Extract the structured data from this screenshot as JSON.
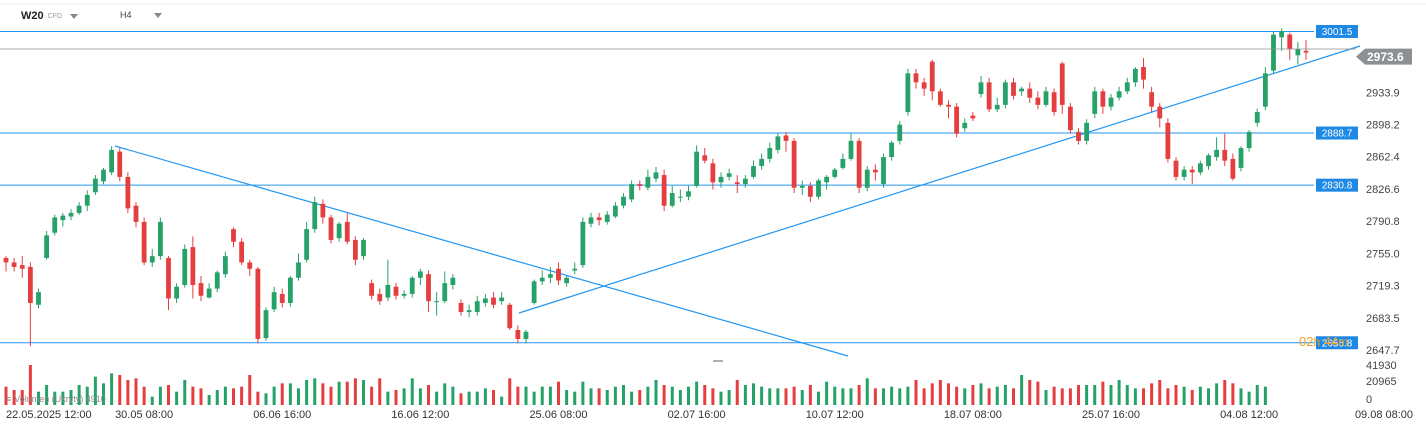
{
  "header": {
    "symbol": "W20",
    "instrument_type": "CFD",
    "timeframe": "H4"
  },
  "timer": {
    "hours": "02",
    "h_unit": "h",
    "minutes": "44",
    "m_unit": "m"
  },
  "volume_label": "Volumen (Ukryty) 4910",
  "colors": {
    "up": "#26a268",
    "down": "#e53e3e",
    "line": "#2196f3",
    "price_tag": "#1e88e5",
    "current_tag": "#8c8f94"
  },
  "chart_data": {
    "type": "candlestick",
    "timeframe": "H4",
    "ylim": [
      2640,
      3012
    ],
    "y_ticks": [
      "2647.7",
      "2683.5",
      "2719.3",
      "2755.0",
      "2790.8",
      "2826.6",
      "2862.4",
      "2898.2",
      "2933.9"
    ],
    "x_ticks": [
      "22.05.2025  12:00",
      "30.05  08:00",
      "06.06  16:00",
      "16.06  12:00",
      "25.06  08:00",
      "02.07  16:00",
      "10.07  12:00",
      "18.07  08:00",
      "25.07  16:00",
      "04.08  12:00",
      "09.08  08:00"
    ],
    "horizontal_levels": [
      {
        "value": 3001.5,
        "label": "3001.5"
      },
      {
        "value": 2888.7,
        "label": "2888.7"
      },
      {
        "value": 2830.8,
        "label": "2830.8"
      },
      {
        "value": 2655.8,
        "label": "2655.8"
      }
    ],
    "current_price": {
      "value": 2973.6,
      "label": "2973.6"
    },
    "volume_axis": {
      "max": 41930,
      "ticks": [
        "41930",
        "20965",
        "0"
      ]
    },
    "candles": [
      [
        2750,
        2745,
        2752,
        2735
      ],
      [
        2745,
        2740,
        2750,
        2735
      ],
      [
        2742,
        2738,
        2752,
        2728
      ],
      [
        2740,
        2700,
        2745,
        2652
      ],
      [
        2698,
        2712,
        2716,
        2694
      ],
      [
        2750,
        2775,
        2780,
        2748
      ],
      [
        2778,
        2795,
        2798,
        2775
      ],
      [
        2792,
        2797,
        2800,
        2785
      ],
      [
        2796,
        2800,
        2804,
        2792
      ],
      [
        2800,
        2808,
        2812,
        2798
      ],
      [
        2808,
        2820,
        2825,
        2802
      ],
      [
        2823,
        2838,
        2842,
        2820
      ],
      [
        2835,
        2848,
        2850,
        2832
      ],
      [
        2845,
        2870,
        2874,
        2842
      ],
      [
        2868,
        2840,
        2872,
        2835
      ],
      [
        2840,
        2805,
        2845,
        2800
      ],
      [
        2808,
        2790,
        2812,
        2784
      ],
      [
        2790,
        2745,
        2795,
        2742
      ],
      [
        2745,
        2752,
        2760,
        2740
      ],
      [
        2752,
        2790,
        2795,
        2748
      ],
      [
        2750,
        2705,
        2752,
        2692
      ],
      [
        2705,
        2718,
        2722,
        2700
      ],
      [
        2720,
        2760,
        2765,
        2717
      ],
      [
        2762,
        2720,
        2774,
        2705
      ],
      [
        2722,
        2708,
        2730,
        2702
      ],
      [
        2706,
        2716,
        2722,
        2705
      ],
      [
        2716,
        2734,
        2736,
        2712
      ],
      [
        2732,
        2752,
        2757,
        2728
      ],
      [
        2782,
        2768,
        2784,
        2762
      ],
      [
        2768,
        2745,
        2772,
        2742
      ],
      [
        2745,
        2738,
        2748,
        2730
      ],
      [
        2738,
        2660,
        2740,
        2655
      ],
      [
        2661,
        2692,
        2695,
        2658
      ],
      [
        2693,
        2712,
        2718,
        2690
      ],
      [
        2710,
        2700,
        2716,
        2695
      ],
      [
        2700,
        2728,
        2730,
        2696
      ],
      [
        2728,
        2745,
        2755,
        2725
      ],
      [
        2748,
        2782,
        2790,
        2745
      ],
      [
        2782,
        2812,
        2818,
        2778
      ],
      [
        2810,
        2795,
        2815,
        2788
      ],
      [
        2795,
        2770,
        2798,
        2766
      ],
      [
        2772,
        2788,
        2790,
        2768
      ],
      [
        2790,
        2768,
        2800,
        2765
      ],
      [
        2770,
        2748,
        2774,
        2742
      ],
      [
        2752,
        2770,
        2772,
        2748
      ],
      [
        2722,
        2708,
        2726,
        2704
      ],
      [
        2710,
        2702,
        2716,
        2698
      ],
      [
        2706,
        2720,
        2748,
        2702
      ],
      [
        2718,
        2708,
        2722,
        2704
      ],
      [
        2708,
        2710,
        2714,
        2705
      ],
      [
        2710,
        2728,
        2730,
        2706
      ],
      [
        2728,
        2735,
        2738,
        2720
      ],
      [
        2732,
        2702,
        2736,
        2690
      ],
      [
        2702,
        2702,
        2712,
        2686
      ],
      [
        2702,
        2722,
        2735,
        2700
      ],
      [
        2720,
        2728,
        2732,
        2715
      ],
      [
        2700,
        2690,
        2704,
        2686
      ],
      [
        2690,
        2692,
        2698,
        2684
      ],
      [
        2690,
        2702,
        2708,
        2686
      ],
      [
        2700,
        2705,
        2710,
        2696
      ],
      [
        2706,
        2698,
        2712,
        2694
      ],
      [
        2702,
        2706,
        2712,
        2698
      ],
      [
        2698,
        2672,
        2700,
        2670
      ],
      [
        2670,
        2660,
        2675,
        2655
      ],
      [
        2660,
        2668,
        2670,
        2655
      ],
      [
        2700,
        2724,
        2726,
        2698
      ],
      [
        2724,
        2728,
        2736,
        2720
      ],
      [
        2728,
        2732,
        2740,
        2722
      ],
      [
        2738,
        2725,
        2745,
        2720
      ],
      [
        2722,
        2728,
        2730,
        2718
      ],
      [
        2736,
        2738,
        2745,
        2732
      ],
      [
        2742,
        2790,
        2795,
        2739
      ],
      [
        2788,
        2795,
        2800,
        2784
      ],
      [
        2795,
        2792,
        2800,
        2786
      ],
      [
        2790,
        2798,
        2802,
        2787
      ],
      [
        2796,
        2808,
        2812,
        2794
      ],
      [
        2808,
        2818,
        2822,
        2805
      ],
      [
        2815,
        2832,
        2836,
        2812
      ],
      [
        2832,
        2830,
        2836,
        2825
      ],
      [
        2828,
        2840,
        2848,
        2825
      ],
      [
        2838,
        2845,
        2851,
        2834
      ],
      [
        2842,
        2808,
        2848,
        2802
      ],
      [
        2808,
        2822,
        2830,
        2806
      ],
      [
        2818,
        2818,
        2826,
        2812
      ],
      [
        2818,
        2824,
        2830,
        2814
      ],
      [
        2830,
        2868,
        2875,
        2828
      ],
      [
        2864,
        2858,
        2872,
        2855
      ],
      [
        2855,
        2834,
        2860,
        2826
      ],
      [
        2834,
        2840,
        2845,
        2828
      ],
      [
        2840,
        2844,
        2849,
        2836
      ],
      [
        2834,
        2832,
        2842,
        2822
      ],
      [
        2832,
        2838,
        2842,
        2828
      ],
      [
        2840,
        2852,
        2858,
        2838
      ],
      [
        2852,
        2860,
        2866,
        2848
      ],
      [
        2860,
        2872,
        2878,
        2856
      ],
      [
        2870,
        2885,
        2888,
        2866
      ],
      [
        2886,
        2880,
        2890,
        2868
      ],
      [
        2880,
        2828,
        2883,
        2822
      ],
      [
        2828,
        2830,
        2836,
        2820
      ],
      [
        2830,
        2818,
        2834,
        2812
      ],
      [
        2818,
        2836,
        2838,
        2815
      ],
      [
        2834,
        2840,
        2842,
        2826
      ],
      [
        2840,
        2848,
        2850,
        2838
      ],
      [
        2850,
        2860,
        2866,
        2848
      ],
      [
        2860,
        2880,
        2888,
        2858
      ],
      [
        2880,
        2828,
        2883,
        2822
      ],
      [
        2828,
        2848,
        2852,
        2824
      ],
      [
        2848,
        2845,
        2854,
        2836
      ],
      [
        2832,
        2862,
        2866,
        2828
      ],
      [
        2862,
        2878,
        2880,
        2858
      ],
      [
        2880,
        2898,
        2902,
        2876
      ],
      [
        2912,
        2955,
        2960,
        2908
      ],
      [
        2955,
        2945,
        2960,
        2938
      ],
      [
        2945,
        2938,
        2950,
        2930
      ],
      [
        2968,
        2935,
        2970,
        2925
      ],
      [
        2935,
        2920,
        2938,
        2918
      ],
      [
        2920,
        2918,
        2925,
        2905
      ],
      [
        2918,
        2888,
        2922,
        2884
      ],
      [
        2894,
        2900,
        2905,
        2890
      ],
      [
        2908,
        2905,
        2912,
        2902
      ],
      [
        2932,
        2945,
        2952,
        2928
      ],
      [
        2945,
        2915,
        2950,
        2912
      ],
      [
        2915,
        2920,
        2928,
        2912
      ],
      [
        2920,
        2945,
        2948,
        2916
      ],
      [
        2945,
        2930,
        2950,
        2926
      ],
      [
        2935,
        2938,
        2940,
        2930
      ],
      [
        2938,
        2928,
        2945,
        2922
      ],
      [
        2928,
        2920,
        2935,
        2915
      ],
      [
        2920,
        2935,
        2940,
        2918
      ],
      [
        2934,
        2912,
        2938,
        2908
      ],
      [
        2966,
        2920,
        2968,
        2910
      ],
      [
        2918,
        2892,
        2922,
        2888
      ],
      [
        2890,
        2880,
        2894,
        2876
      ],
      [
        2880,
        2900,
        2904,
        2876
      ],
      [
        2910,
        2935,
        2940,
        2905
      ],
      [
        2935,
        2918,
        2938,
        2910
      ],
      [
        2918,
        2928,
        2932,
        2914
      ],
      [
        2928,
        2935,
        2940,
        2925
      ],
      [
        2935,
        2945,
        2950,
        2932
      ],
      [
        2945,
        2960,
        2962,
        2940
      ],
      [
        2962,
        2948,
        2972,
        2938
      ],
      [
        2934,
        2918,
        2940,
        2912
      ],
      [
        2918,
        2905,
        2922,
        2895
      ],
      [
        2900,
        2860,
        2905,
        2856
      ],
      [
        2858,
        2840,
        2862,
        2836
      ],
      [
        2840,
        2848,
        2852,
        2836
      ],
      [
        2848,
        2845,
        2852,
        2832
      ],
      [
        2845,
        2855,
        2858,
        2842
      ],
      [
        2852,
        2864,
        2866,
        2848
      ],
      [
        2862,
        2870,
        2884,
        2858
      ],
      [
        2870,
        2858,
        2888,
        2852
      ],
      [
        2860,
        2838,
        2866,
        2836
      ],
      [
        2850,
        2872,
        2874,
        2846
      ],
      [
        2872,
        2890,
        2892,
        2868
      ],
      [
        2900,
        2912,
        2916,
        2896
      ],
      [
        2918,
        2955,
        2962,
        2914
      ],
      [
        2958,
        2998,
        3001,
        2955
      ],
      [
        2995,
        3002,
        3005,
        2980
      ],
      [
        2998,
        2982,
        3000,
        2970
      ],
      [
        2975,
        2982,
        2990,
        2965
      ],
      [
        2980,
        2978,
        2992,
        2970
      ]
    ],
    "volumes": [
      22,
      18,
      18,
      48,
      16,
      24,
      16,
      16,
      18,
      24,
      22,
      34,
      26,
      38,
      36,
      30,
      32,
      22,
      10,
      22,
      24,
      16,
      30,
      22,
      20,
      12,
      18,
      22,
      20,
      22,
      36,
      16,
      14,
      22,
      26,
      26,
      20,
      30,
      32,
      26,
      22,
      28,
      28,
      32,
      30,
      22,
      32,
      16,
      18,
      20,
      32,
      20,
      24,
      16,
      26,
      22,
      14,
      16,
      16,
      20,
      18,
      10,
      32,
      22,
      22,
      16,
      22,
      22,
      28,
      18,
      16,
      28,
      20,
      20,
      18,
      22,
      24,
      16,
      18,
      22,
      30,
      24,
      22,
      18,
      22,
      28,
      24,
      20,
      16,
      18,
      30,
      24,
      26,
      22,
      20,
      20,
      20,
      22,
      18,
      24,
      16,
      28,
      22,
      20,
      20,
      24,
      32,
      20,
      20,
      22,
      20,
      22,
      30,
      20,
      26,
      30,
      26,
      22,
      20,
      24,
      26,
      20,
      22,
      24,
      20,
      36,
      30,
      28,
      18,
      22,
      20,
      20,
      24,
      24,
      24,
      28,
      24,
      30,
      24,
      20,
      20,
      26,
      30,
      20,
      24,
      22,
      18,
      22,
      20,
      26,
      30,
      26,
      20,
      16,
      24,
      22
    ]
  }
}
